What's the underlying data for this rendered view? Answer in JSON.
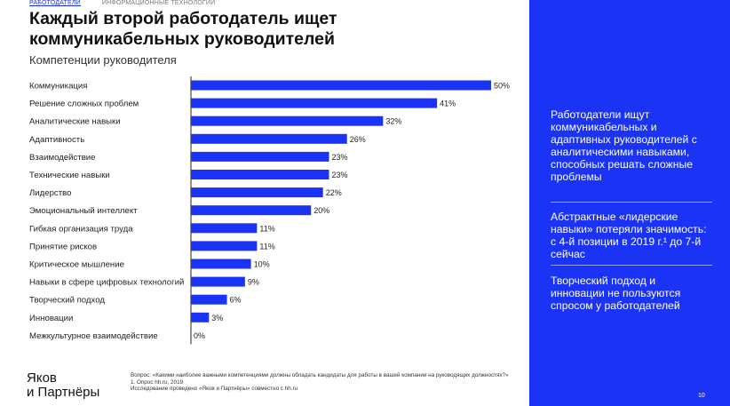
{
  "breadcrumb": [
    "РАБОТОДАТЕЛИ",
    "ИНФОРМАЦИОННЫЕ ТЕХНОЛОГИИ"
  ],
  "title": "Каждый второй работодатель ищет коммуникабельных руководителей",
  "subtitle": "Компетенции руководителя",
  "chart_data": {
    "type": "bar",
    "orientation": "horizontal",
    "categories": [
      "Коммуникация",
      "Решение сложных проблем",
      "Аналитические навыки",
      "Адаптивность",
      "Взаимодействие",
      "Технические навыки",
      "Лидерство",
      "Эмоциональный интеллект",
      "Гибкая организация труда",
      "Принятие рисков",
      "Критическое мышление",
      "Навыки в сфере цифровых технологий",
      "Творческий подход",
      "Инновации",
      "Межкультурное взаимодействие"
    ],
    "values": [
      50,
      41,
      32,
      26,
      23,
      23,
      22,
      20,
      11,
      11,
      10,
      9,
      6,
      3,
      0
    ],
    "value_labels": [
      "50%",
      "41%",
      "32%",
      "26%",
      "23%",
      "23%",
      "22%",
      "20%",
      "11%",
      "11%",
      "10%",
      "9%",
      "6%",
      "3%",
      "0%"
    ],
    "xlim": [
      0,
      50
    ],
    "bar_color": "#1a33f5",
    "grid": false,
    "legend": "none"
  },
  "logo": {
    "line1": "Яков",
    "line2": "и Партнёры"
  },
  "footnotes": [
    "Вопрос: «Какими наиболее важными компетенциями должны обладать кандидаты для работы в вашей компании на руководящих должностях?»",
    "1.    Опрос hh.ru, 2019",
    "Исследование проведено «Яков и Партнёры» совместно с hh.ru"
  ],
  "insights": [
    "Работодатели ищут коммуникабельных и адаптивных руководителей с аналитическими навыками, способных решать сложные проблемы",
    "Абстрактные «лидерские навыки» потеряли значимость: с 4-й позиции в 2019 г.¹ до 7-й сейчас",
    "Творческий подход и инновации не пользуются спросом у работодателей"
  ],
  "page_number": "10",
  "colors": {
    "accent": "#1a33f5",
    "text": "#111111",
    "muted": "#7a7a7a"
  }
}
